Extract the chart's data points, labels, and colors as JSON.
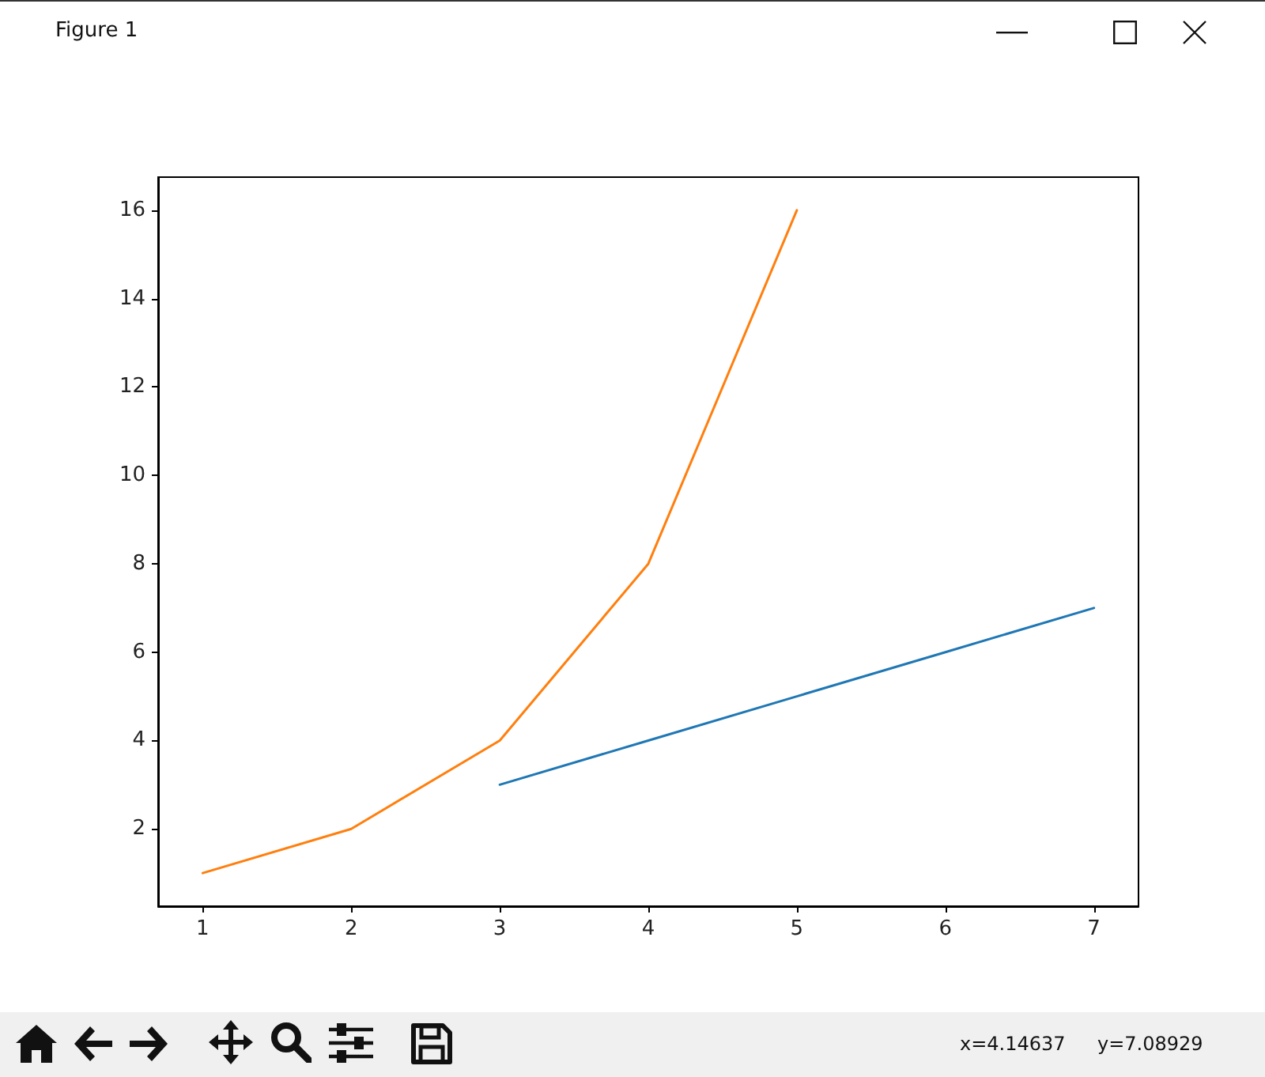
{
  "chart_data": {
    "type": "line",
    "series": [
      {
        "color": "#1f77b4",
        "x": [
          3,
          4,
          5,
          6,
          7
        ],
        "values": [
          3,
          4,
          5,
          6,
          7
        ]
      },
      {
        "color": "#ff7f0e",
        "x": [
          1,
          2,
          3,
          4,
          5
        ],
        "values": [
          1,
          2,
          4,
          8,
          16
        ]
      }
    ],
    "xlim": [
      0.7,
      7.3
    ],
    "ylim": [
      0.25,
      16.75
    ],
    "xticks": [
      1,
      2,
      3,
      4,
      5,
      6,
      7
    ],
    "yticks": [
      2,
      4,
      6,
      8,
      10,
      12,
      14,
      16
    ],
    "annotations": [
      "Figure 1",
      "x=4.14637",
      "y=7.08929"
    ]
  }
}
